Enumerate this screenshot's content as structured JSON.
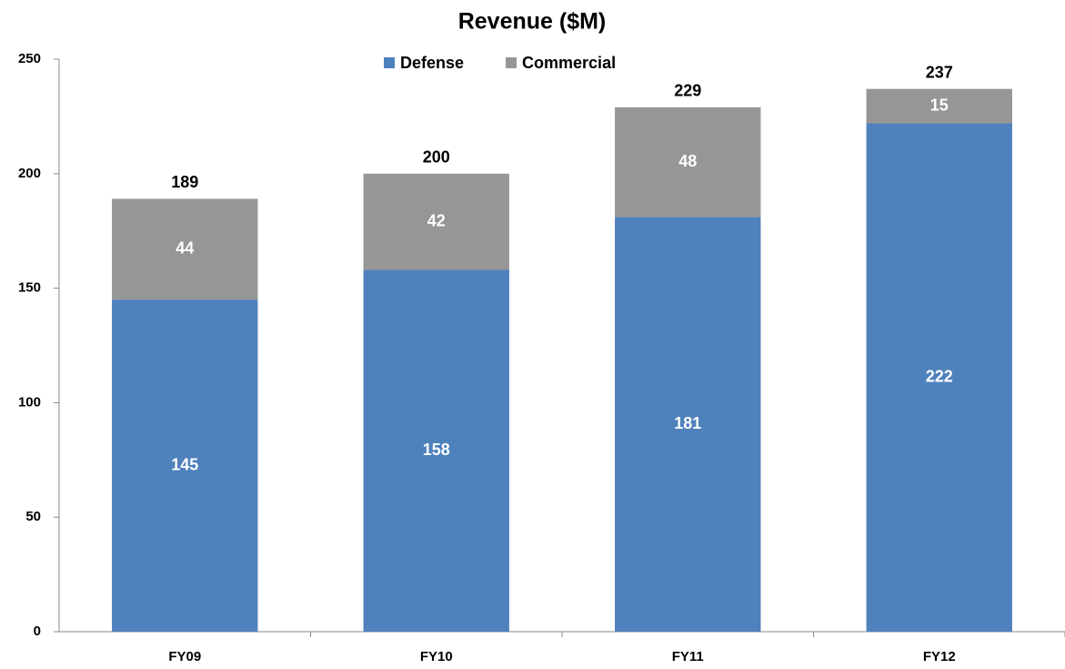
{
  "chart_data": {
    "type": "stacked_bar",
    "title": "Revenue ($M)",
    "categories": [
      "FY09",
      "FY10",
      "FY11",
      "FY12"
    ],
    "series": [
      {
        "name": "Defense",
        "color": "#4f81bd",
        "values": [
          145,
          158,
          181,
          222
        ]
      },
      {
        "name": "Commercial",
        "color": "#969696",
        "values": [
          44,
          42,
          48,
          15
        ]
      }
    ],
    "totals": [
      189,
      200,
      229,
      237
    ],
    "ylim": [
      0,
      250
    ],
    "yticks": [
      0,
      50,
      100,
      150,
      200,
      250
    ],
    "grid": false,
    "legend": "top"
  }
}
